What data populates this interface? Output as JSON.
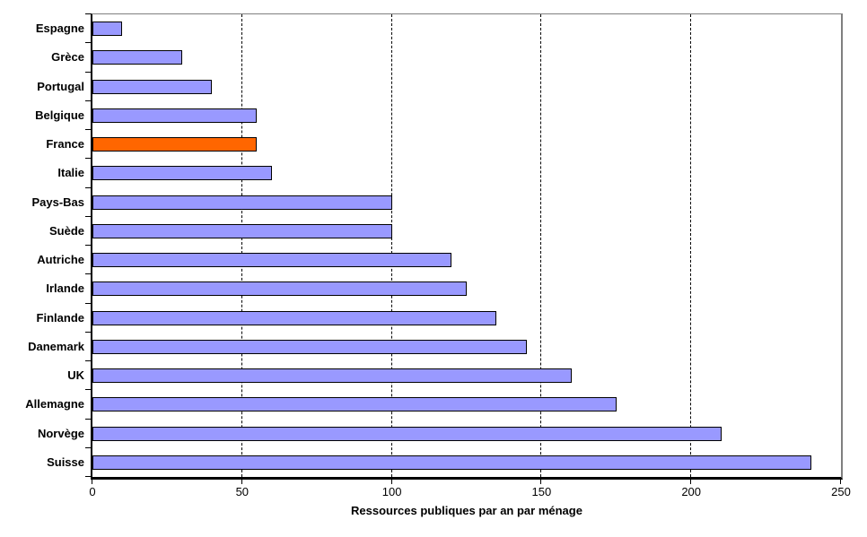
{
  "chart_data": {
    "type": "bar",
    "orientation": "horizontal",
    "title": "",
    "xlabel": "Ressources publiques par an par ménage",
    "ylabel": "",
    "xlim": [
      0,
      250
    ],
    "x_ticks": [
      0,
      50,
      100,
      150,
      200,
      250
    ],
    "gridlines": [
      50,
      100,
      150,
      200
    ],
    "grid_style": "dashed",
    "legend": "none",
    "categories": [
      "Espagne",
      "Grèce",
      "Portugal",
      "Belgique",
      "France",
      "Italie",
      "Pays-Bas",
      "Suède",
      "Autriche",
      "Irlande",
      "Finlande",
      "Danemark",
      "UK",
      "Allemagne",
      "Norvège",
      "Suisse"
    ],
    "values": [
      10,
      30,
      40,
      55,
      55,
      60,
      100,
      100,
      120,
      125,
      135,
      145,
      160,
      175,
      210,
      240
    ],
    "highlighted_category": "France",
    "colors": {
      "bar_fill": "#9999FF",
      "highlight_fill": "#FF6600",
      "bar_border": "#000000",
      "plot_border_gray": "#808080",
      "axis_color": "#000000",
      "background": "#FFFFFF",
      "text": "#000000"
    }
  }
}
